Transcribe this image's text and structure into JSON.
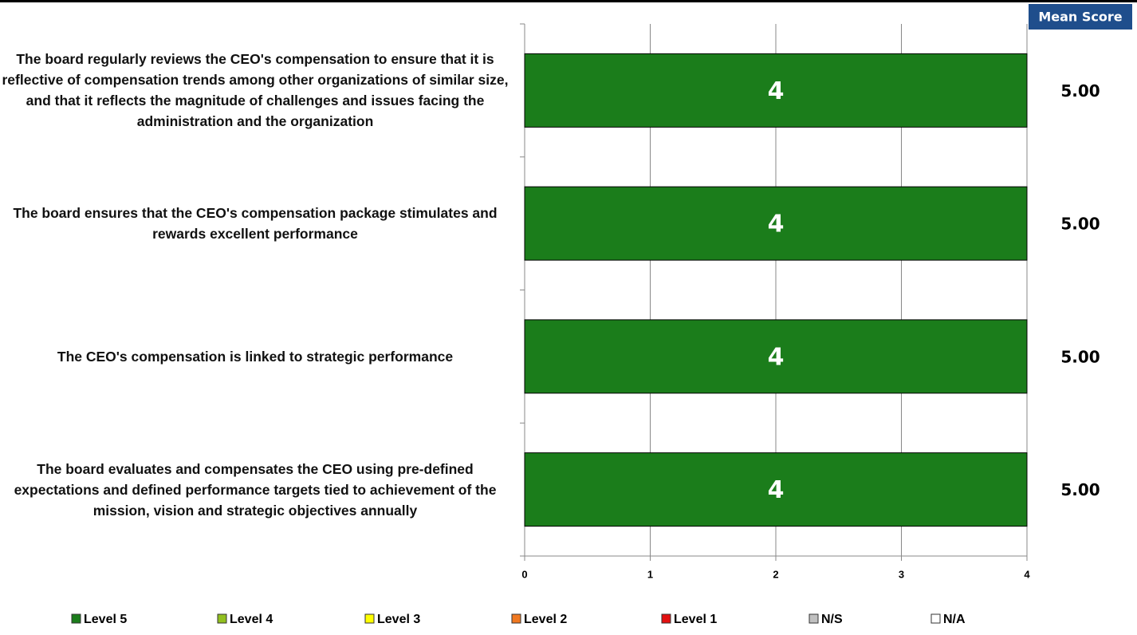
{
  "chart_data": {
    "type": "stacked_bar_horizontal",
    "categories": [
      "The board regularly reviews the CEO's compensation to ensure that it is reflective of compensation trends among other organizations of similar size, and that it reflects the magnitude of challenges and issues facing the administration and the organization",
      "The board ensures that the CEO's compensation package stimulates and rewards excellent performance",
      "The CEO's compensation is linked to strategic performance",
      "The board evaluates and compensates the CEO using pre-defined expectations and defined performance targets tied to achievement of the mission, vision and strategic objectives annually"
    ],
    "series": [
      {
        "name": "Level 5",
        "color": "#1b7d1b",
        "values": [
          4,
          4,
          4,
          4
        ]
      },
      {
        "name": "Level 4",
        "color": "#92c01f",
        "values": [
          0,
          0,
          0,
          0
        ]
      },
      {
        "name": "Level 3",
        "color": "#ffff00",
        "values": [
          0,
          0,
          0,
          0
        ]
      },
      {
        "name": "Level 2",
        "color": "#f07820",
        "values": [
          0,
          0,
          0,
          0
        ]
      },
      {
        "name": "Level 1",
        "color": "#e31010",
        "values": [
          0,
          0,
          0,
          0
        ]
      },
      {
        "name": "N/S",
        "color": "#c0c0c0",
        "values": [
          0,
          0,
          0,
          0
        ]
      },
      {
        "name": "N/A",
        "color": "#ffffff",
        "values": [
          0,
          0,
          0,
          0
        ]
      }
    ],
    "xlim": [
      0,
      4
    ],
    "xticks": [
      0,
      1,
      2,
      3,
      4
    ],
    "grid": true,
    "mean_score": {
      "title": "Mean Score",
      "values": [
        5,
        5,
        5,
        5
      ],
      "value_labels": [
        "5.00",
        "5.00",
        "5.00",
        "5.00"
      ]
    }
  }
}
